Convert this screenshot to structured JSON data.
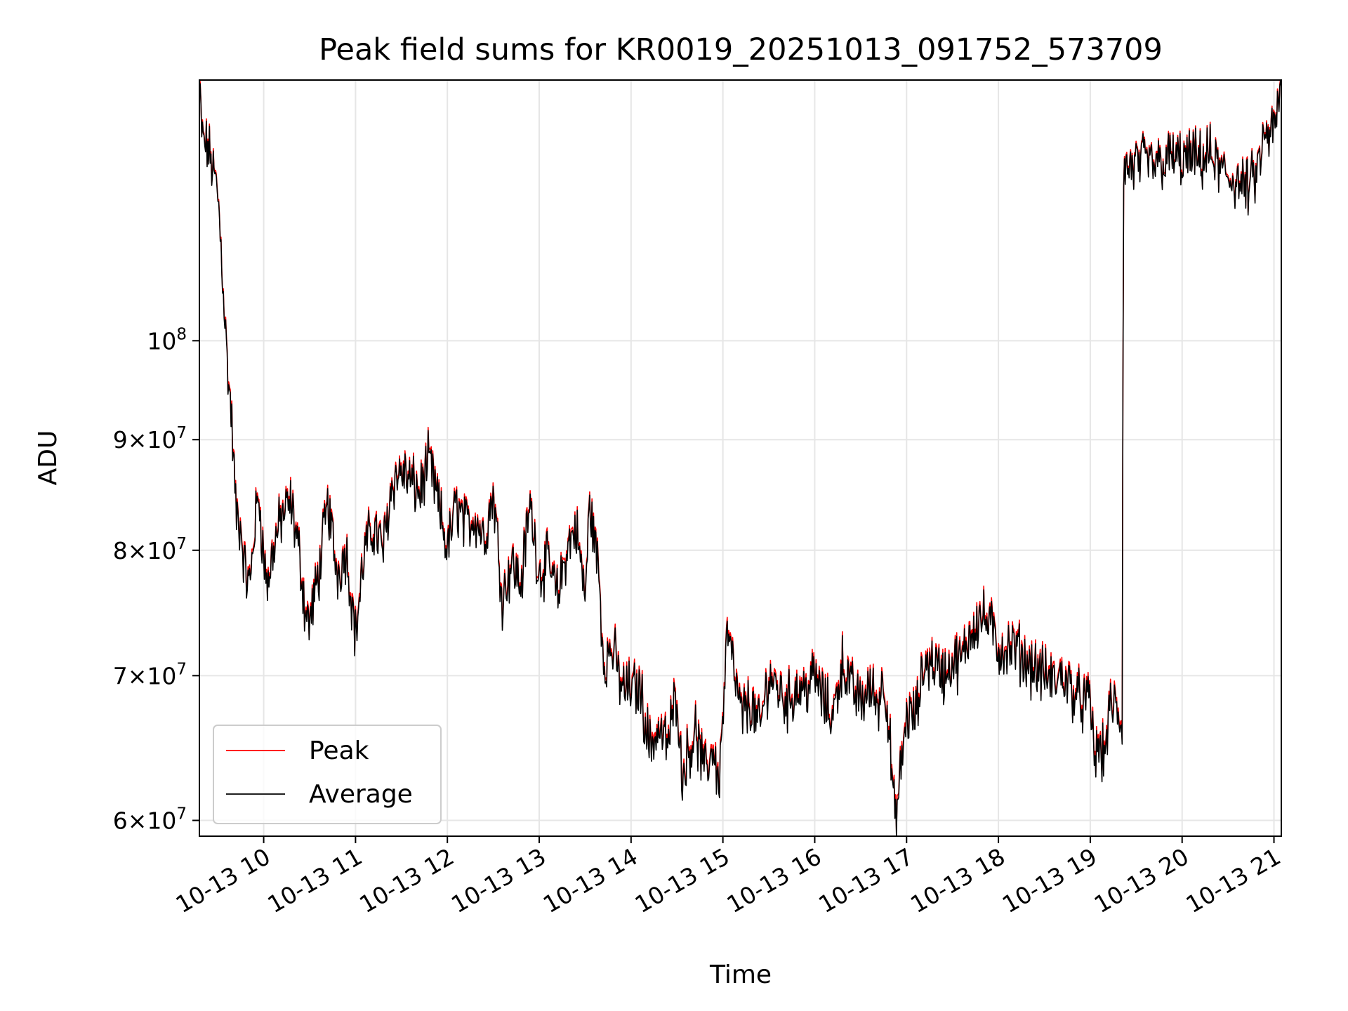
{
  "chart_data": {
    "type": "line",
    "title": "Peak field sums for KR0019_20251013_091752_573709",
    "xlabel": "Time",
    "ylabel": "ADU",
    "y_scale": "log",
    "ylim": [
      59000000,
      132000000
    ],
    "x_range_hours": [
      9.3,
      21.08
    ],
    "grid": true,
    "legend_position": "lower-left",
    "x_ticks": [
      {
        "value": 10,
        "label": "10-13 10"
      },
      {
        "value": 11,
        "label": "10-13 11"
      },
      {
        "value": 12,
        "label": "10-13 12"
      },
      {
        "value": 13,
        "label": "10-13 13"
      },
      {
        "value": 14,
        "label": "10-13 14"
      },
      {
        "value": 15,
        "label": "10-13 15"
      },
      {
        "value": 16,
        "label": "10-13 16"
      },
      {
        "value": 17,
        "label": "10-13 17"
      },
      {
        "value": 18,
        "label": "10-13 18"
      },
      {
        "value": 19,
        "label": "10-13 19"
      },
      {
        "value": 20,
        "label": "10-13 20"
      },
      {
        "value": 21,
        "label": "10-13 21"
      }
    ],
    "y_ticks": [
      {
        "value": 60000000,
        "mantissa": "6",
        "exponent": "7"
      },
      {
        "value": 70000000,
        "mantissa": "7",
        "exponent": "7"
      },
      {
        "value": 80000000,
        "mantissa": "8",
        "exponent": "7"
      },
      {
        "value": 90000000,
        "mantissa": "9",
        "exponent": "7"
      },
      {
        "value": 100000000,
        "mantissa": "",
        "exponent": "8"
      }
    ],
    "series": [
      {
        "name": "Peak",
        "color": "#ff0000",
        "offset": 300000
      },
      {
        "name": "Average",
        "color": "#000000",
        "offset": 0
      }
    ],
    "anchors": [
      [
        9.3,
        131000000
      ],
      [
        9.33,
        124000000
      ],
      [
        9.4,
        122500000
      ],
      [
        9.5,
        117000000
      ],
      [
        9.55,
        108000000
      ],
      [
        9.6,
        98000000
      ],
      [
        9.65,
        92000000
      ],
      [
        9.7,
        83000000
      ],
      [
        9.75,
        82000000
      ],
      [
        9.8,
        78000000
      ],
      [
        9.85,
        77000000
      ],
      [
        9.9,
        82000000
      ],
      [
        9.95,
        85000000
      ],
      [
        10.0,
        79000000
      ],
      [
        10.05,
        77000000
      ],
      [
        10.1,
        80000000
      ],
      [
        10.2,
        83000000
      ],
      [
        10.3,
        84000000
      ],
      [
        10.4,
        79000000
      ],
      [
        10.45,
        75000000
      ],
      [
        10.5,
        74000000
      ],
      [
        10.6,
        78000000
      ],
      [
        10.7,
        84000000
      ],
      [
        10.8,
        78000000
      ],
      [
        10.9,
        80000000
      ],
      [
        11.0,
        73000000
      ],
      [
        11.1,
        80000000
      ],
      [
        11.2,
        82000000
      ],
      [
        11.3,
        80000000
      ],
      [
        11.4,
        86000000
      ],
      [
        11.5,
        87000000
      ],
      [
        11.6,
        86000000
      ],
      [
        11.7,
        85000000
      ],
      [
        11.8,
        88000000
      ],
      [
        11.9,
        84000000
      ],
      [
        12.0,
        80000000
      ],
      [
        12.1,
        84000000
      ],
      [
        12.2,
        82000000
      ],
      [
        12.3,
        83000000
      ],
      [
        12.4,
        81000000
      ],
      [
        12.5,
        85000000
      ],
      [
        12.6,
        76000000
      ],
      [
        12.7,
        79000000
      ],
      [
        12.8,
        77000000
      ],
      [
        12.9,
        84000000
      ],
      [
        13.0,
        78000000
      ],
      [
        13.1,
        79000000
      ],
      [
        13.2,
        76000000
      ],
      [
        13.3,
        80000000
      ],
      [
        13.4,
        82000000
      ],
      [
        13.5,
        76000000
      ],
      [
        13.55,
        84000000
      ],
      [
        13.6,
        81000000
      ],
      [
        13.65,
        78000000
      ],
      [
        13.7,
        71000000
      ],
      [
        13.8,
        72000000
      ],
      [
        13.9,
        69000000
      ],
      [
        14.0,
        69000000
      ],
      [
        14.1,
        69000000
      ],
      [
        14.2,
        65000000
      ],
      [
        14.3,
        66000000
      ],
      [
        14.4,
        65000000
      ],
      [
        14.5,
        69000000
      ],
      [
        14.55,
        63000000
      ],
      [
        14.6,
        64000000
      ],
      [
        14.7,
        66000000
      ],
      [
        14.8,
        63000000
      ],
      [
        14.9,
        65000000
      ],
      [
        14.95,
        62000000
      ],
      [
        15.0,
        67000000
      ],
      [
        15.05,
        73500000
      ],
      [
        15.1,
        71000000
      ],
      [
        15.2,
        67000000
      ],
      [
        15.3,
        68000000
      ],
      [
        15.4,
        66000000
      ],
      [
        15.5,
        70000000
      ],
      [
        15.6,
        69000000
      ],
      [
        15.7,
        68000000
      ],
      [
        15.8,
        69000000
      ],
      [
        15.9,
        69000000
      ],
      [
        16.0,
        70000000
      ],
      [
        16.1,
        68000000
      ],
      [
        16.2,
        67000000
      ],
      [
        16.3,
        71000000
      ],
      [
        16.4,
        69000000
      ],
      [
        16.5,
        68000000
      ],
      [
        16.6,
        69000000
      ],
      [
        16.7,
        68000000
      ],
      [
        16.75,
        70000000
      ],
      [
        16.8,
        67000000
      ],
      [
        16.85,
        62000000
      ],
      [
        16.88,
        59500000
      ],
      [
        16.95,
        64000000
      ],
      [
        17.0,
        67000000
      ],
      [
        17.1,
        67000000
      ],
      [
        17.2,
        71000000
      ],
      [
        17.3,
        71000000
      ],
      [
        17.4,
        70000000
      ],
      [
        17.5,
        71000000
      ],
      [
        17.6,
        71000000
      ],
      [
        17.7,
        73500000
      ],
      [
        17.8,
        74500000
      ],
      [
        17.9,
        74000000
      ],
      [
        18.0,
        72000000
      ],
      [
        18.1,
        72000000
      ],
      [
        18.2,
        72000000
      ],
      [
        18.3,
        71000000
      ],
      [
        18.4,
        70500000
      ],
      [
        18.5,
        70000000
      ],
      [
        18.6,
        69500000
      ],
      [
        18.7,
        70000000
      ],
      [
        18.8,
        69000000
      ],
      [
        18.9,
        68000000
      ],
      [
        19.0,
        68000000
      ],
      [
        19.05,
        64000000
      ],
      [
        19.1,
        65000000
      ],
      [
        19.15,
        64000000
      ],
      [
        19.2,
        67000000
      ],
      [
        19.25,
        68000000
      ],
      [
        19.3,
        67000000
      ],
      [
        19.35,
        66500000
      ],
      [
        19.36,
        120000000
      ],
      [
        19.5,
        120500000
      ],
      [
        19.6,
        121000000
      ],
      [
        19.7,
        120500000
      ],
      [
        19.8,
        121000000
      ],
      [
        19.9,
        121500000
      ],
      [
        20.0,
        121000000
      ],
      [
        20.1,
        121500000
      ],
      [
        20.2,
        121000000
      ],
      [
        20.3,
        122000000
      ],
      [
        20.4,
        120000000
      ],
      [
        20.5,
        119000000
      ],
      [
        20.6,
        118500000
      ],
      [
        20.7,
        117500000
      ],
      [
        20.8,
        119000000
      ],
      [
        20.9,
        124000000
      ],
      [
        21.0,
        125000000
      ],
      [
        21.08,
        131000000
      ]
    ]
  }
}
